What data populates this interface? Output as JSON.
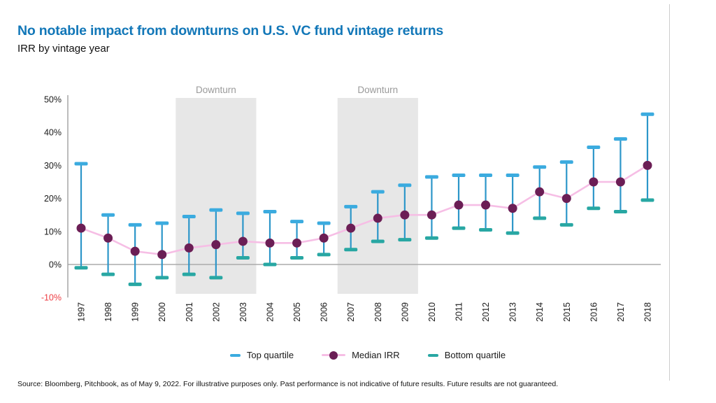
{
  "header": {
    "title": "No notable impact from downturns on U.S. VC fund vintage returns",
    "subtitle": "IRR by vintage year"
  },
  "chart_data": {
    "type": "line",
    "title": "IRR by vintage year",
    "x": [
      1997,
      1998,
      1999,
      2000,
      2001,
      2002,
      2003,
      2004,
      2005,
      2006,
      2007,
      2008,
      2009,
      2010,
      2011,
      2012,
      2013,
      2014,
      2015,
      2016,
      2017,
      2018
    ],
    "series": [
      {
        "name": "Top quartile",
        "values": [
          30.5,
          15,
          12,
          12.5,
          14.5,
          16.5,
          15.5,
          16,
          13,
          12.5,
          17.5,
          22,
          24,
          26.5,
          27,
          27,
          27,
          29.5,
          31,
          35.5,
          38,
          45.5
        ]
      },
      {
        "name": "Median IRR",
        "values": [
          11,
          8,
          4,
          3,
          5,
          6,
          7,
          6.5,
          6.5,
          8,
          11,
          14,
          15,
          15,
          18,
          18,
          17,
          22,
          20,
          25,
          25,
          30
        ]
      },
      {
        "name": "Bottom quartile",
        "values": [
          -1,
          -3,
          -6,
          -4,
          -3,
          -4,
          2,
          0,
          2,
          3,
          4.5,
          7,
          7.5,
          8,
          11,
          10.5,
          9.5,
          14,
          12,
          17,
          16,
          19.5
        ]
      }
    ],
    "ylim": [
      -10,
      50
    ],
    "yticks": [
      {
        "value": 50,
        "label": "50%"
      },
      {
        "value": 40,
        "label": "40%"
      },
      {
        "value": 30,
        "label": "30%"
      },
      {
        "value": 20,
        "label": "20%"
      },
      {
        "value": 10,
        "label": "10%"
      },
      {
        "value": 0,
        "label": "0%"
      },
      {
        "value": -10,
        "label": "-10%"
      }
    ],
    "downturn_bands": [
      {
        "label": "Downturn",
        "from": 2001,
        "to": 2003
      },
      {
        "label": "Downturn",
        "from": 2007,
        "to": 2009
      }
    ],
    "legend_position": "bottom",
    "grid": "zero-line-only"
  },
  "colors": {
    "title_blue": "#1277B8",
    "top_quartile": "#3BABDF",
    "error_bar_line": "#2C96C9",
    "bottom_quartile": "#28A7A3",
    "median_dot": "#6B1E55",
    "median_line": "#F6BEE5",
    "downturn_band": "#E7E7E7",
    "downturn_label": "#9A9A9A",
    "negative_tick": "#EE3E44",
    "axis": "#A0A0A0",
    "zero_line": "#ABABAB"
  },
  "footer": {
    "source": "Source: Bloomberg, Pitchbook, as of May 9, 2022. For illustrative purposes only. Past performance is not indicative of future results. Future results are not guaranteed."
  }
}
